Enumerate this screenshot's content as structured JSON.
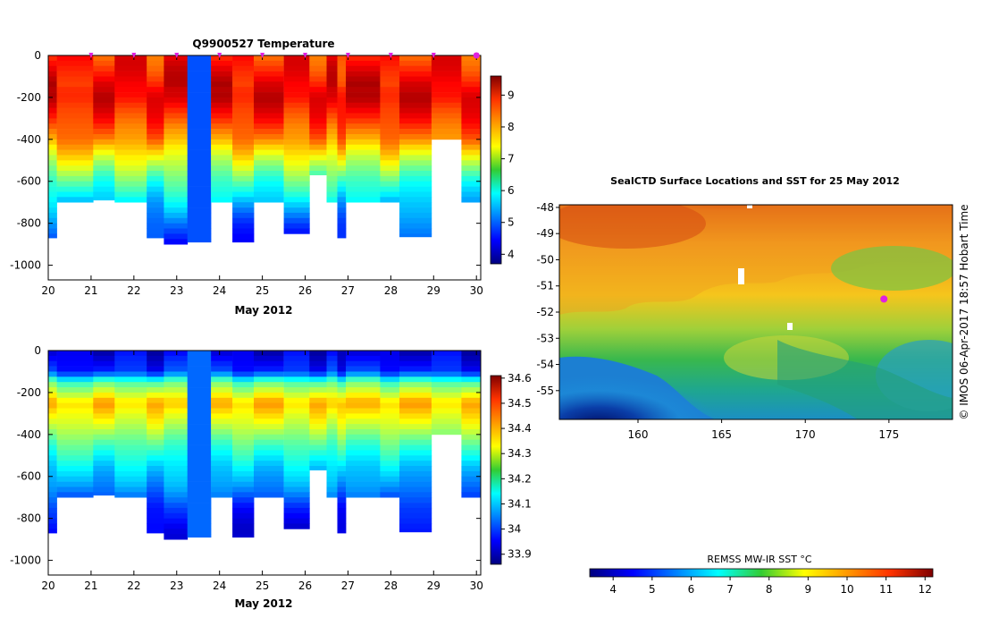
{
  "chart_data": [
    {
      "type": "heatmap",
      "title": "Q9900527  Temperature",
      "xlabel": "May 2012",
      "ylabel": "",
      "xlim": [
        20,
        30.1
      ],
      "ylim": [
        -1070,
        0
      ],
      "x_ticks": [
        20,
        21,
        22,
        23,
        24,
        25,
        26,
        27,
        28,
        29,
        30
      ],
      "y_ticks": [
        0,
        -200,
        -400,
        -600,
        -800,
        -1000
      ],
      "colorbar": {
        "range": [
          3.7,
          9.6
        ],
        "ticks": [
          4,
          5,
          6,
          7,
          8,
          9
        ]
      },
      "profile_markers_x": [
        21,
        22,
        23,
        24,
        25,
        26,
        27,
        28,
        29,
        30
      ],
      "current_position_marker_x": 30,
      "profiles": [
        {
          "x0": 20.0,
          "x1": 20.2,
          "max_depth": 870
        },
        {
          "x0": 20.2,
          "x1": 21.05,
          "max_depth": 700
        },
        {
          "x0": 21.05,
          "x1": 21.55,
          "max_depth": 690
        },
        {
          "x0": 21.55,
          "x1": 22.3,
          "max_depth": 700
        },
        {
          "x0": 22.3,
          "x1": 22.7,
          "max_depth": 870
        },
        {
          "x0": 22.7,
          "x1": 23.25,
          "max_depth": 900
        },
        {
          "x0": 23.25,
          "x1": 23.8,
          "max_depth": 890,
          "uniform": 4.9
        },
        {
          "x0": 23.8,
          "x1": 24.3,
          "max_depth": 700
        },
        {
          "x0": 24.3,
          "x1": 24.8,
          "max_depth": 890
        },
        {
          "x0": 24.8,
          "x1": 25.5,
          "max_depth": 700
        },
        {
          "x0": 25.5,
          "x1": 26.1,
          "max_depth": 850
        },
        {
          "x0": 26.1,
          "x1": 26.5,
          "max_depth": 570
        },
        {
          "x0": 26.5,
          "x1": 26.75,
          "max_depth": 700
        },
        {
          "x0": 26.75,
          "x1": 26.95,
          "max_depth": 870
        },
        {
          "x0": 26.95,
          "x1": 27.75,
          "max_depth": 700
        },
        {
          "x0": 27.75,
          "x1": 28.2,
          "max_depth": 700
        },
        {
          "x0": 28.2,
          "x1": 28.95,
          "max_depth": 865
        },
        {
          "x0": 28.95,
          "x1": 29.65,
          "max_depth": 400
        },
        {
          "x0": 29.65,
          "x1": 30.1,
          "max_depth": 700
        }
      ],
      "depth_profile": [
        {
          "depth": 0,
          "value": 8.6
        },
        {
          "depth": 100,
          "value": 8.8
        },
        {
          "depth": 200,
          "value": 9.0
        },
        {
          "depth": 300,
          "value": 8.6
        },
        {
          "depth": 400,
          "value": 8.1
        },
        {
          "depth": 500,
          "value": 7.2
        },
        {
          "depth": 600,
          "value": 6.3
        },
        {
          "depth": 700,
          "value": 5.6
        },
        {
          "depth": 800,
          "value": 5.0
        },
        {
          "depth": 900,
          "value": 4.6
        }
      ]
    },
    {
      "type": "heatmap",
      "title": "",
      "xlabel": "May 2012",
      "ylabel": "",
      "xlim": [
        20,
        30.1
      ],
      "ylim": [
        -1070,
        0
      ],
      "x_ticks": [
        20,
        21,
        22,
        23,
        24,
        25,
        26,
        27,
        28,
        29,
        30
      ],
      "y_ticks": [
        0,
        -200,
        -400,
        -600,
        -800,
        -1000
      ],
      "colorbar": {
        "range": [
          33.86,
          34.61
        ],
        "ticks": [
          33.9,
          34,
          34.1,
          34.2,
          34.3,
          34.4,
          34.5,
          34.6
        ]
      },
      "profiles": [
        {
          "x0": 20.0,
          "x1": 20.2,
          "max_depth": 870
        },
        {
          "x0": 20.2,
          "x1": 21.05,
          "max_depth": 700
        },
        {
          "x0": 21.05,
          "x1": 21.55,
          "max_depth": 690
        },
        {
          "x0": 21.55,
          "x1": 22.3,
          "max_depth": 700
        },
        {
          "x0": 22.3,
          "x1": 22.7,
          "max_depth": 870
        },
        {
          "x0": 22.7,
          "x1": 23.25,
          "max_depth": 900
        },
        {
          "x0": 23.25,
          "x1": 23.8,
          "max_depth": 890,
          "uniform": 34.03
        },
        {
          "x0": 23.8,
          "x1": 24.3,
          "max_depth": 700
        },
        {
          "x0": 24.3,
          "x1": 24.8,
          "max_depth": 890
        },
        {
          "x0": 24.8,
          "x1": 25.5,
          "max_depth": 700
        },
        {
          "x0": 25.5,
          "x1": 26.1,
          "max_depth": 850
        },
        {
          "x0": 26.1,
          "x1": 26.5,
          "max_depth": 570
        },
        {
          "x0": 26.5,
          "x1": 26.75,
          "max_depth": 700
        },
        {
          "x0": 26.75,
          "x1": 26.95,
          "max_depth": 870
        },
        {
          "x0": 26.95,
          "x1": 27.75,
          "max_depth": 700
        },
        {
          "x0": 27.75,
          "x1": 28.2,
          "max_depth": 700
        },
        {
          "x0": 28.2,
          "x1": 28.95,
          "max_depth": 865
        },
        {
          "x0": 28.95,
          "x1": 29.65,
          "max_depth": 400
        },
        {
          "x0": 29.65,
          "x1": 30.1,
          "max_depth": 700
        }
      ],
      "depth_profile": [
        {
          "depth": 0,
          "value": 33.92
        },
        {
          "depth": 100,
          "value": 33.98
        },
        {
          "depth": 150,
          "value": 34.2
        },
        {
          "depth": 250,
          "value": 34.38
        },
        {
          "depth": 350,
          "value": 34.3
        },
        {
          "depth": 450,
          "value": 34.2
        },
        {
          "depth": 550,
          "value": 34.12
        },
        {
          "depth": 650,
          "value": 34.06
        },
        {
          "depth": 750,
          "value": 33.98
        },
        {
          "depth": 850,
          "value": 33.94
        }
      ]
    },
    {
      "type": "heatmap",
      "title": "SealCTD Surface Locations and SST for 25 May 2012",
      "xlabel": "",
      "ylabel": "",
      "xlim": [
        155.3,
        178.8
      ],
      "ylim": [
        -56.1,
        -47.9
      ],
      "x_ticks": [
        160,
        165,
        170,
        175
      ],
      "y_ticks": [
        -48,
        -49,
        -50,
        -51,
        -52,
        -53,
        -54,
        -55
      ],
      "colorbar": {
        "label": "REMSS MW-IR SST °C",
        "range": [
          3.4,
          12.2
        ],
        "ticks": [
          4,
          5,
          6,
          7,
          8,
          9,
          10,
          11,
          12
        ],
        "placement": "bottom"
      },
      "current_location": {
        "lon": 174.7,
        "lat": -51.5
      },
      "side_text": "© IMOS 06-Apr-2017 18:57 Hobart Time"
    }
  ]
}
